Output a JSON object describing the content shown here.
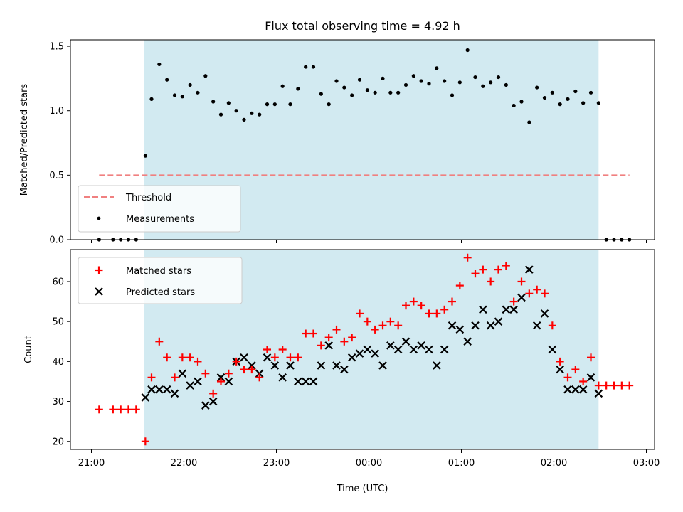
{
  "chart_data": [
    {
      "type": "scatter",
      "title": "Flux total observing time = 4.92 h",
      "ylabel": "Matched/Predicted stars",
      "xlabel": "",
      "ylim": [
        0,
        1.55
      ],
      "yticks": [
        "0.0",
        "0.5",
        "1.0",
        "1.5"
      ],
      "grid": false,
      "legend": {
        "placement": "lower-left",
        "entries": [
          "Threshold",
          "Measurements"
        ]
      },
      "shaded_span": {
        "from": "21:34",
        "to": "02:29",
        "color": "#add8e6"
      },
      "threshold": {
        "name": "Threshold",
        "value": 0.5,
        "from": "21:05",
        "to": "02:49",
        "color": "#f08080",
        "style": "dashed"
      },
      "series": [
        {
          "name": "Measurements",
          "color": "#000000",
          "points": [
            [
              "21:05",
              0.0
            ],
            [
              "21:14",
              0.0
            ],
            [
              "21:19",
              0.0
            ],
            [
              "21:24",
              0.0
            ],
            [
              "21:29",
              0.0
            ],
            [
              "21:35",
              0.65
            ],
            [
              "21:39",
              1.09
            ],
            [
              "21:44",
              1.36
            ],
            [
              "21:49",
              1.24
            ],
            [
              "21:54",
              1.12
            ],
            [
              "21:59",
              1.11
            ],
            [
              "22:04",
              1.2
            ],
            [
              "22:09",
              1.14
            ],
            [
              "22:14",
              1.27
            ],
            [
              "22:19",
              1.07
            ],
            [
              "22:24",
              0.97
            ],
            [
              "22:29",
              1.06
            ],
            [
              "22:34",
              1.0
            ],
            [
              "22:39",
              0.93
            ],
            [
              "22:44",
              0.98
            ],
            [
              "22:49",
              0.97
            ],
            [
              "22:54",
              1.05
            ],
            [
              "22:59",
              1.05
            ],
            [
              "23:04",
              1.19
            ],
            [
              "23:09",
              1.05
            ],
            [
              "23:14",
              1.17
            ],
            [
              "23:19",
              1.34
            ],
            [
              "23:24",
              1.34
            ],
            [
              "23:29",
              1.13
            ],
            [
              "23:34",
              1.05
            ],
            [
              "23:39",
              1.23
            ],
            [
              "23:44",
              1.18
            ],
            [
              "23:49",
              1.12
            ],
            [
              "23:54",
              1.24
            ],
            [
              "23:59",
              1.16
            ],
            [
              "00:04",
              1.14
            ],
            [
              "00:09",
              1.25
            ],
            [
              "00:14",
              1.14
            ],
            [
              "00:19",
              1.14
            ],
            [
              "00:24",
              1.2
            ],
            [
              "00:29",
              1.27
            ],
            [
              "00:34",
              1.23
            ],
            [
              "00:39",
              1.21
            ],
            [
              "00:44",
              1.33
            ],
            [
              "00:49",
              1.23
            ],
            [
              "00:54",
              1.12
            ],
            [
              "00:59",
              1.22
            ],
            [
              "01:04",
              1.47
            ],
            [
              "01:09",
              1.26
            ],
            [
              "01:14",
              1.19
            ],
            [
              "01:19",
              1.22
            ],
            [
              "01:24",
              1.26
            ],
            [
              "01:29",
              1.2
            ],
            [
              "01:34",
              1.04
            ],
            [
              "01:39",
              1.07
            ],
            [
              "01:44",
              0.91
            ],
            [
              "01:49",
              1.18
            ],
            [
              "01:54",
              1.1
            ],
            [
              "01:59",
              1.14
            ],
            [
              "02:04",
              1.05
            ],
            [
              "02:09",
              1.09
            ],
            [
              "02:14",
              1.15
            ],
            [
              "02:19",
              1.06
            ],
            [
              "02:24",
              1.14
            ],
            [
              "02:29",
              1.06
            ],
            [
              "02:34",
              0.0
            ],
            [
              "02:39",
              0.0
            ],
            [
              "02:44",
              0.0
            ],
            [
              "02:49",
              0.0
            ]
          ]
        }
      ]
    },
    {
      "type": "scatter",
      "title": "",
      "ylabel": "Count",
      "xlabel": "Time (UTC)",
      "ylim": [
        18,
        68
      ],
      "yticks": [
        "20",
        "30",
        "40",
        "50",
        "60"
      ],
      "xticks": [
        "21:00",
        "22:00",
        "23:00",
        "00:00",
        "01:00",
        "02:00",
        "03:00"
      ],
      "grid": false,
      "legend": {
        "placement": "upper-left",
        "entries": [
          "Matched stars",
          "Predicted stars"
        ]
      },
      "shaded_span": {
        "from": "21:34",
        "to": "02:29",
        "color": "#add8e6"
      },
      "series": [
        {
          "name": "Matched stars",
          "marker": "plus",
          "color": "#ff0000",
          "points": [
            [
              "21:05",
              28
            ],
            [
              "21:14",
              28
            ],
            [
              "21:19",
              28
            ],
            [
              "21:24",
              28
            ],
            [
              "21:29",
              28
            ],
            [
              "21:35",
              20
            ],
            [
              "21:39",
              36
            ],
            [
              "21:44",
              45
            ],
            [
              "21:49",
              41
            ],
            [
              "21:54",
              36
            ],
            [
              "21:59",
              41
            ],
            [
              "22:04",
              41
            ],
            [
              "22:09",
              40
            ],
            [
              "22:14",
              37
            ],
            [
              "22:19",
              32
            ],
            [
              "22:24",
              35
            ],
            [
              "22:29",
              37
            ],
            [
              "22:34",
              40
            ],
            [
              "22:39",
              38
            ],
            [
              "22:44",
              38
            ],
            [
              "22:49",
              36
            ],
            [
              "22:54",
              43
            ],
            [
              "22:59",
              41
            ],
            [
              "23:04",
              43
            ],
            [
              "23:09",
              41
            ],
            [
              "23:14",
              41
            ],
            [
              "23:19",
              47
            ],
            [
              "23:24",
              47
            ],
            [
              "23:29",
              44
            ],
            [
              "23:34",
              46
            ],
            [
              "23:39",
              48
            ],
            [
              "23:44",
              45
            ],
            [
              "23:49",
              46
            ],
            [
              "23:54",
              52
            ],
            [
              "23:59",
              50
            ],
            [
              "00:04",
              48
            ],
            [
              "00:09",
              49
            ],
            [
              "00:14",
              50
            ],
            [
              "00:19",
              49
            ],
            [
              "00:24",
              54
            ],
            [
              "00:29",
              55
            ],
            [
              "00:34",
              54
            ],
            [
              "00:39",
              52
            ],
            [
              "00:44",
              52
            ],
            [
              "00:49",
              53
            ],
            [
              "00:54",
              55
            ],
            [
              "00:59",
              59
            ],
            [
              "01:04",
              66
            ],
            [
              "01:09",
              62
            ],
            [
              "01:14",
              63
            ],
            [
              "01:19",
              60
            ],
            [
              "01:24",
              63
            ],
            [
              "01:29",
              64
            ],
            [
              "01:34",
              55
            ],
            [
              "01:39",
              60
            ],
            [
              "01:44",
              57
            ],
            [
              "01:49",
              58
            ],
            [
              "01:54",
              57
            ],
            [
              "01:59",
              49
            ],
            [
              "02:04",
              40
            ],
            [
              "02:09",
              36
            ],
            [
              "02:14",
              38
            ],
            [
              "02:19",
              35
            ],
            [
              "02:24",
              41
            ],
            [
              "02:29",
              34
            ],
            [
              "02:34",
              34
            ],
            [
              "02:39",
              34
            ],
            [
              "02:44",
              34
            ],
            [
              "02:49",
              34
            ]
          ]
        },
        {
          "name": "Predicted stars",
          "marker": "x",
          "color": "#000000",
          "points": [
            [
              "21:35",
              31
            ],
            [
              "21:39",
              33
            ],
            [
              "21:44",
              33
            ],
            [
              "21:49",
              33
            ],
            [
              "21:54",
              32
            ],
            [
              "21:59",
              37
            ],
            [
              "22:04",
              34
            ],
            [
              "22:09",
              35
            ],
            [
              "22:14",
              29
            ],
            [
              "22:19",
              30
            ],
            [
              "22:24",
              36
            ],
            [
              "22:29",
              35
            ],
            [
              "22:34",
              40
            ],
            [
              "22:39",
              41
            ],
            [
              "22:44",
              39
            ],
            [
              "22:49",
              37
            ],
            [
              "22:54",
              41
            ],
            [
              "22:59",
              39
            ],
            [
              "23:04",
              36
            ],
            [
              "23:09",
              39
            ],
            [
              "23:14",
              35
            ],
            [
              "23:19",
              35
            ],
            [
              "23:24",
              35
            ],
            [
              "23:29",
              39
            ],
            [
              "23:34",
              44
            ],
            [
              "23:39",
              39
            ],
            [
              "23:44",
              38
            ],
            [
              "23:49",
              41
            ],
            [
              "23:54",
              42
            ],
            [
              "23:59",
              43
            ],
            [
              "00:04",
              42
            ],
            [
              "00:09",
              39
            ],
            [
              "00:14",
              44
            ],
            [
              "00:19",
              43
            ],
            [
              "00:24",
              45
            ],
            [
              "00:29",
              43
            ],
            [
              "00:34",
              44
            ],
            [
              "00:39",
              43
            ],
            [
              "00:44",
              39
            ],
            [
              "00:49",
              43
            ],
            [
              "00:54",
              49
            ],
            [
              "00:59",
              48
            ],
            [
              "01:04",
              45
            ],
            [
              "01:09",
              49
            ],
            [
              "01:14",
              53
            ],
            [
              "01:19",
              49
            ],
            [
              "01:24",
              50
            ],
            [
              "01:29",
              53
            ],
            [
              "01:34",
              53
            ],
            [
              "01:39",
              56
            ],
            [
              "01:44",
              63
            ],
            [
              "01:49",
              49
            ],
            [
              "01:54",
              52
            ],
            [
              "01:59",
              43
            ],
            [
              "02:04",
              38
            ],
            [
              "02:09",
              33
            ],
            [
              "02:14",
              33
            ],
            [
              "02:19",
              33
            ],
            [
              "02:24",
              36
            ],
            [
              "02:29",
              32
            ]
          ]
        }
      ]
    }
  ]
}
